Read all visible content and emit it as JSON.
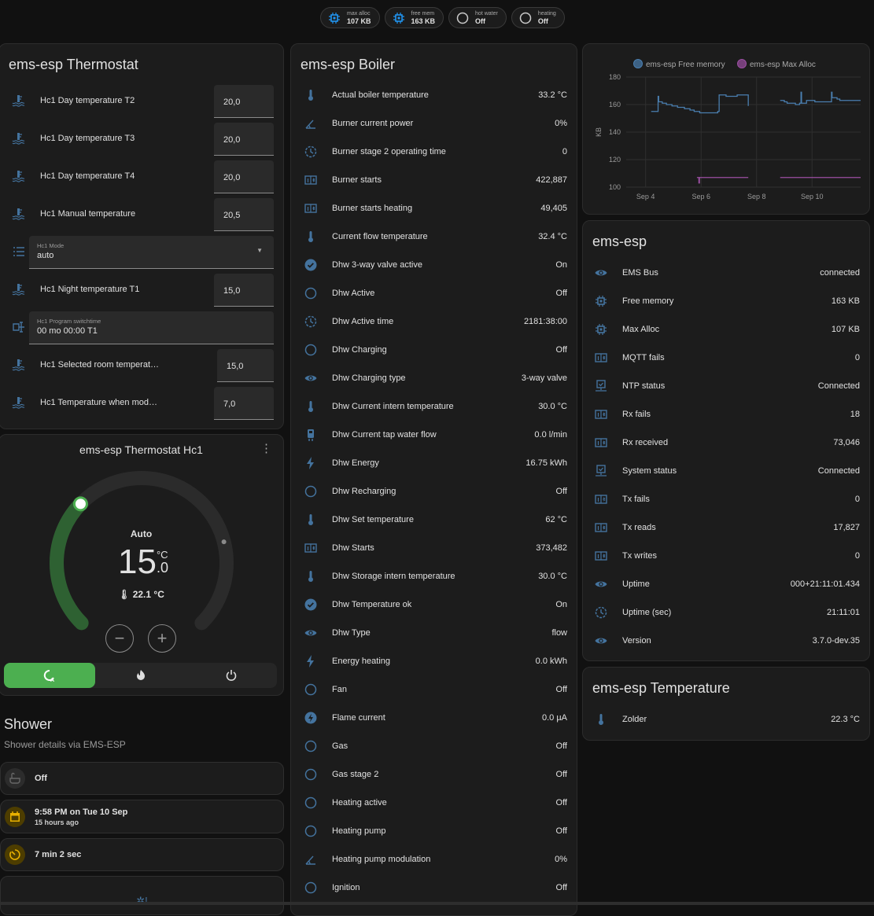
{
  "chips": [
    {
      "icon": "chip-icon",
      "label": "max alloc",
      "value": "107 KB"
    },
    {
      "icon": "chip-icon",
      "label": "free mem",
      "value": "163 KB"
    },
    {
      "icon": "circle-outline-icon",
      "label": "hot water",
      "value": "Off"
    },
    {
      "icon": "circle-outline-icon",
      "label": "heating",
      "value": "Off"
    }
  ],
  "thermostat": {
    "title": "ems-esp Thermostat",
    "rows": [
      {
        "type": "number",
        "icon": "water-thermometer-icon",
        "name": "Hc1 Day temperature T2",
        "value": "20,0"
      },
      {
        "type": "number",
        "icon": "water-thermometer-icon",
        "name": "Hc1 Day temperature T3",
        "value": "20,0"
      },
      {
        "type": "number",
        "icon": "water-thermometer-icon",
        "name": "Hc1 Day temperature T4",
        "value": "20,0"
      },
      {
        "type": "number",
        "icon": "water-thermometer-icon",
        "name": "Hc1 Manual temperature",
        "value": "20,5"
      },
      {
        "type": "select",
        "icon": "list-icon",
        "label": "Hc1 Mode",
        "value": "auto"
      },
      {
        "type": "number",
        "icon": "water-thermometer-icon",
        "name": "Hc1 Night temperature T1",
        "value": "15,0"
      },
      {
        "type": "text",
        "icon": "text-cursor-icon",
        "label": "Hc1 Program switchtime",
        "value": "00 mo 00:00 T1"
      },
      {
        "type": "number",
        "icon": "water-thermometer-icon",
        "name": "Hc1 Selected room temperat…",
        "value": "15,0"
      },
      {
        "type": "number",
        "icon": "water-thermometer-icon",
        "name": "Hc1 Temperature when mod…",
        "value": "7,0"
      }
    ]
  },
  "climate": {
    "title": "ems-esp Thermostat Hc1",
    "mode": "Auto",
    "target_int": "15",
    "target_dec": ".0",
    "unit": "°C",
    "current": "22.1 °C",
    "target_fraction": 0.33,
    "current_fraction": 0.78,
    "modes": [
      {
        "icon": "auto-mode-icon",
        "active": true
      },
      {
        "icon": "fire-icon",
        "active": false
      },
      {
        "icon": "power-icon",
        "active": false
      }
    ],
    "accent": "#4caf50"
  },
  "shower": {
    "title": "Shower",
    "subtitle": "Shower details via EMS-ESP",
    "rows": [
      {
        "icon": "bathtub-icon",
        "primary": "Off",
        "secondary": ""
      },
      {
        "icon": "calendar-icon",
        "primary": "9:58 PM on Tue 10 Sep",
        "secondary": "15 hours ago"
      },
      {
        "icon": "timer-icon",
        "primary": "7 min 2 sec",
        "secondary": ""
      }
    ]
  },
  "boiler": {
    "title": "ems-esp Boiler",
    "rows": [
      {
        "icon": "thermometer-icon",
        "name": "Actual boiler temperature",
        "value": "33.2 °C"
      },
      {
        "icon": "angle-icon",
        "name": "Burner current power",
        "value": "0%"
      },
      {
        "icon": "clock-icon",
        "name": "Burner stage 2 operating time",
        "value": "0"
      },
      {
        "icon": "counter-icon",
        "name": "Burner starts",
        "value": "422,887"
      },
      {
        "icon": "counter-icon",
        "name": "Burner starts heating",
        "value": "49,405"
      },
      {
        "icon": "thermometer-icon",
        "name": "Current flow temperature",
        "value": "32.4 °C"
      },
      {
        "icon": "check-circle-icon",
        "name": "Dhw 3-way valve active",
        "value": "On"
      },
      {
        "icon": "circle-outline-icon",
        "name": "Dhw Active",
        "value": "Off"
      },
      {
        "icon": "clock-icon",
        "name": "Dhw Active time",
        "value": "2181:38:00"
      },
      {
        "icon": "circle-outline-icon",
        "name": "Dhw Charging",
        "value": "Off"
      },
      {
        "icon": "eye-icon",
        "name": "Dhw Charging type",
        "value": "3-way valve"
      },
      {
        "icon": "thermometer-icon",
        "name": "Dhw Current intern temperature",
        "value": "30.0 °C"
      },
      {
        "icon": "water-pump-icon",
        "name": "Dhw Current tap water flow",
        "value": "0.0 l/min"
      },
      {
        "icon": "flash-icon",
        "name": "Dhw Energy",
        "value": "16.75 kWh"
      },
      {
        "icon": "circle-outline-icon",
        "name": "Dhw Recharging",
        "value": "Off"
      },
      {
        "icon": "thermometer-icon",
        "name": "Dhw Set temperature",
        "value": "62 °C"
      },
      {
        "icon": "counter-icon",
        "name": "Dhw Starts",
        "value": "373,482"
      },
      {
        "icon": "thermometer-icon",
        "name": "Dhw Storage intern temperature",
        "value": "30.0 °C"
      },
      {
        "icon": "check-circle-icon",
        "name": "Dhw Temperature ok",
        "value": "On"
      },
      {
        "icon": "eye-icon",
        "name": "Dhw Type",
        "value": "flow"
      },
      {
        "icon": "flash-icon",
        "name": "Energy heating",
        "value": "0.0 kWh"
      },
      {
        "icon": "circle-outline-icon",
        "name": "Fan",
        "value": "Off"
      },
      {
        "icon": "flash-circle-icon",
        "name": "Flame current",
        "value": "0.0 µA"
      },
      {
        "icon": "circle-outline-icon",
        "name": "Gas",
        "value": "Off"
      },
      {
        "icon": "circle-outline-icon",
        "name": "Gas stage 2",
        "value": "Off"
      },
      {
        "icon": "circle-outline-icon",
        "name": "Heating active",
        "value": "Off"
      },
      {
        "icon": "circle-outline-icon",
        "name": "Heating pump",
        "value": "Off"
      },
      {
        "icon": "angle-icon",
        "name": "Heating pump modulation",
        "value": "0%"
      },
      {
        "icon": "circle-outline-icon",
        "name": "Ignition",
        "value": "Off"
      }
    ]
  },
  "chart_data": {
    "type": "line",
    "ylabel": "KB",
    "ylim": [
      100,
      180
    ],
    "yticks": [
      "100",
      "120",
      "140",
      "160",
      "180"
    ],
    "xticks": [
      {
        "label": "Sep 4",
        "x": 4
      },
      {
        "label": "Sep 6",
        "x": 6
      },
      {
        "label": "Sep 8",
        "x": 8
      },
      {
        "label": "Sep 10",
        "x": 10
      }
    ],
    "xlim": [
      3.3,
      11.75
    ],
    "grid": true,
    "legend": "top",
    "series": [
      {
        "name": "ems-esp Free memory",
        "color": "#4a7fb0",
        "step": true,
        "points": [
          [
            4.2,
            155
          ],
          [
            4.45,
            155
          ],
          [
            4.45,
            166
          ],
          [
            4.47,
            162
          ],
          [
            4.6,
            161
          ],
          [
            4.75,
            160
          ],
          [
            4.95,
            159
          ],
          [
            5.15,
            158
          ],
          [
            5.4,
            157
          ],
          [
            5.6,
            156
          ],
          [
            5.75,
            155
          ],
          [
            5.95,
            154
          ],
          [
            6.35,
            154
          ],
          [
            6.6,
            155
          ],
          [
            6.65,
            167
          ],
          [
            6.9,
            166
          ],
          [
            7.3,
            166
          ],
          [
            7.3,
            167
          ],
          [
            7.7,
            167
          ],
          [
            7.7,
            159
          ],
          null,
          [
            8.85,
            163
          ],
          [
            9.0,
            162
          ],
          [
            9.1,
            161
          ],
          [
            9.4,
            160
          ],
          [
            9.55,
            161
          ],
          [
            9.6,
            169
          ],
          [
            9.62,
            161
          ],
          [
            9.8,
            163
          ],
          [
            10.0,
            163
          ],
          [
            10.1,
            162
          ],
          [
            10.65,
            162
          ],
          [
            10.7,
            169
          ],
          [
            10.72,
            165
          ],
          [
            10.9,
            164
          ],
          [
            11.0,
            163
          ],
          [
            11.75,
            163
          ]
        ]
      },
      {
        "name": "ems-esp Max Alloc",
        "color": "#9c4fa3",
        "step": true,
        "points": [
          [
            5.85,
            107
          ],
          [
            5.92,
            103
          ],
          [
            5.94,
            107
          ],
          [
            7.7,
            107
          ],
          null,
          [
            8.85,
            107
          ],
          [
            11.75,
            107
          ]
        ]
      }
    ]
  },
  "esp": {
    "title": "ems-esp",
    "rows": [
      {
        "icon": "eye-icon",
        "name": "EMS Bus",
        "value": "connected"
      },
      {
        "icon": "chip-icon",
        "name": "Free memory",
        "value": "163 KB"
      },
      {
        "icon": "chip-icon",
        "name": "Max Alloc",
        "value": "107 KB"
      },
      {
        "icon": "counter-icon",
        "name": "MQTT fails",
        "value": "0"
      },
      {
        "icon": "monitor-check-icon",
        "name": "NTP status",
        "value": "Connected"
      },
      {
        "icon": "counter-icon",
        "name": "Rx fails",
        "value": "18"
      },
      {
        "icon": "counter-icon",
        "name": "Rx received",
        "value": "73,046"
      },
      {
        "icon": "monitor-check-icon",
        "name": "System status",
        "value": "Connected"
      },
      {
        "icon": "counter-icon",
        "name": "Tx fails",
        "value": "0"
      },
      {
        "icon": "counter-icon",
        "name": "Tx reads",
        "value": "17,827"
      },
      {
        "icon": "counter-icon",
        "name": "Tx writes",
        "value": "0"
      },
      {
        "icon": "eye-icon",
        "name": "Uptime",
        "value": "000+21:11:01.434"
      },
      {
        "icon": "clock-icon",
        "name": "Uptime (sec)",
        "value": "21:11:01"
      },
      {
        "icon": "eye-icon",
        "name": "Version",
        "value": "3.7.0-dev.35"
      }
    ]
  },
  "temperature": {
    "title": "ems-esp Temperature",
    "rows": [
      {
        "icon": "thermometer-icon",
        "name": "Zolder",
        "value": "22.3 °C"
      }
    ]
  },
  "colors": {
    "icon": "#44739e",
    "card": "#1c1c1c",
    "background": "#111111"
  }
}
